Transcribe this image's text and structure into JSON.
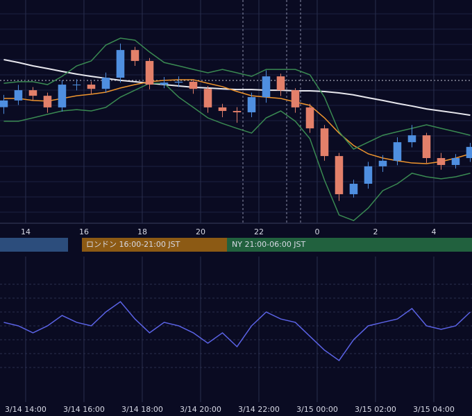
{
  "chart_data": [
    {
      "type": "candlestick",
      "x": [
        13.25,
        13.75,
        14.25,
        14.75,
        15.25,
        15.75,
        16.25,
        16.75,
        17.25,
        17.75,
        18.25,
        18.75,
        19.25,
        19.75,
        20.25,
        20.75,
        21.25,
        21.75,
        22.25,
        22.75,
        23.25,
        23.75,
        24.25,
        24.75,
        25.25,
        25.75,
        26.25,
        26.75,
        27.25,
        27.75,
        28.25,
        28.75,
        29.25
      ],
      "open": [
        52.0,
        55.0,
        59.6,
        57.1,
        51.9,
        62.1,
        62.1,
        60.2,
        65.2,
        77.6,
        72.7,
        62.1,
        63.0,
        63.4,
        60.2,
        51.9,
        50.3,
        49.7,
        56.5,
        65.8,
        59.6,
        51.9,
        42.5,
        30.1,
        13.0,
        17.7,
        25.5,
        28.0,
        36.3,
        39.4,
        29.2,
        26.1,
        29.2
      ],
      "high": [
        57.5,
        62.0,
        61.0,
        58.5,
        64.0,
        64.5,
        63.5,
        67.5,
        80.5,
        79.0,
        74.0,
        65.5,
        65.8,
        64.5,
        61.5,
        53.5,
        52.0,
        58.5,
        68.5,
        67.0,
        60.5,
        53.5,
        44.0,
        31.5,
        19.5,
        27.5,
        30.5,
        38.5,
        44.0,
        40.5,
        31.5,
        31.0,
        36.0
      ],
      "low": [
        49.0,
        53.0,
        55.0,
        49.5,
        50.0,
        59.5,
        58.0,
        58.5,
        63.0,
        70.5,
        60.0,
        60.5,
        61.0,
        58.0,
        49.5,
        47.5,
        45.0,
        47.5,
        54.0,
        57.0,
        49.5,
        40.5,
        28.0,
        10.0,
        11.5,
        15.5,
        23.0,
        26.0,
        34.0,
        27.0,
        24.0,
        24.5,
        27.5
      ],
      "close": [
        55.0,
        59.6,
        57.1,
        51.9,
        62.1,
        62.1,
        60.2,
        65.2,
        77.6,
        72.7,
        62.1,
        63.0,
        63.4,
        60.2,
        51.9,
        50.3,
        49.7,
        56.5,
        65.8,
        59.6,
        51.9,
        42.5,
        30.1,
        13.0,
        17.7,
        25.5,
        28.0,
        36.3,
        39.4,
        29.2,
        26.1,
        29.2,
        34.2
      ],
      "up_color": "#4f8fe0",
      "down_color": "#e3806a",
      "lines": [
        {
          "color": "#e8e8ee",
          "values": [
            73.3,
            72.0,
            70.5,
            69.3,
            68.0,
            66.8,
            65.8,
            64.9,
            64.0,
            63.4,
            62.7,
            62.1,
            61.5,
            60.9,
            60.6,
            60.2,
            59.9,
            59.9,
            59.6,
            59.6,
            59.3,
            59.3,
            59.0,
            58.4,
            57.5,
            56.2,
            55.0,
            53.7,
            52.5,
            51.2,
            50.3,
            49.4,
            48.4
          ]
        },
        {
          "color": "#f0962e",
          "values": [
            55.9,
            55.9,
            55.0,
            54.7,
            55.9,
            57.1,
            57.8,
            58.7,
            60.6,
            62.1,
            63.4,
            64.0,
            64.3,
            64.3,
            62.7,
            61.2,
            59.0,
            57.1,
            56.5,
            55.9,
            54.3,
            52.8,
            47.2,
            40.4,
            34.8,
            31.1,
            29.2,
            28.0,
            27.0,
            26.7,
            27.6,
            29.2,
            31.1
          ]
        },
        {
          "color": "#3a8a52",
          "values": [
            62.7,
            63.4,
            63.4,
            62.1,
            65.8,
            70.5,
            72.7,
            79.8,
            82.9,
            82.0,
            76.7,
            72.0,
            70.5,
            68.9,
            67.4,
            68.9,
            67.4,
            65.8,
            68.9,
            68.9,
            68.9,
            66.5,
            56.5,
            41.0,
            33.2,
            36.3,
            39.4,
            41.0,
            42.5,
            44.1,
            42.5,
            41.0,
            39.4
          ]
        },
        {
          "color": "#3a8a52",
          "values": [
            45.7,
            45.7,
            47.2,
            48.8,
            50.3,
            50.9,
            50.3,
            51.9,
            56.5,
            59.6,
            62.7,
            62.7,
            56.5,
            51.9,
            47.2,
            44.7,
            42.5,
            40.4,
            47.2,
            50.3,
            45.7,
            37.9,
            19.3,
            3.7,
            1.2,
            6.8,
            14.6,
            17.7,
            22.4,
            20.8,
            19.9,
            20.8,
            22.4
          ]
        }
      ],
      "annotations": [
        "ロンドン 16:00-21:00 JST",
        "NY 21:00-06:00 JST"
      ],
      "xlim": [
        13.12,
        29.31
      ],
      "ylim": [
        0,
        100
      ],
      "xticks": [
        14,
        16,
        18,
        20,
        22,
        {
          "value": 24,
          "label": "0"
        },
        {
          "value": 26,
          "label": "2"
        },
        {
          "value": 28,
          "label": "4"
        }
      ]
    },
    {
      "type": "line",
      "x": [
        13.25,
        13.75,
        14.25,
        14.75,
        15.25,
        15.75,
        16.25,
        16.75,
        17.25,
        17.75,
        18.25,
        18.75,
        19.25,
        19.75,
        20.25,
        20.75,
        21.25,
        21.75,
        22.25,
        22.75,
        23.25,
        23.75,
        24.25,
        24.75,
        25.25,
        25.75,
        26.25,
        26.75,
        27.25,
        27.75,
        28.25,
        28.75,
        29.25
      ],
      "color": "#5b63e6",
      "values": [
        54.8,
        52.4,
        47.6,
        52.4,
        59.5,
        54.8,
        52.4,
        61.9,
        69.0,
        57.1,
        47.6,
        54.8,
        52.4,
        47.6,
        40.5,
        47.6,
        38.1,
        52.4,
        61.9,
        57.1,
        54.8,
        45.2,
        35.7,
        28.6,
        42.9,
        52.4,
        54.8,
        57.1,
        64.3,
        52.4,
        50.0,
        52.4,
        61.9
      ],
      "xlim": [
        13.12,
        29.31
      ],
      "ylim": [
        0,
        100
      ],
      "xticks": [
        {
          "value": 14,
          "label": "3/14 14:00"
        },
        {
          "value": 16,
          "label": "3/14 16:00"
        },
        {
          "value": 18,
          "label": "3/14 18:00"
        },
        {
          "value": 20,
          "label": "3/14 20:00"
        },
        {
          "value": 22,
          "label": "3/14 22:00"
        },
        {
          "value": 24,
          "label": "3/15 00:00"
        },
        {
          "value": 26,
          "label": "3/15 02:00"
        },
        {
          "value": 28,
          "label": "3/15 04:00"
        }
      ]
    }
  ]
}
